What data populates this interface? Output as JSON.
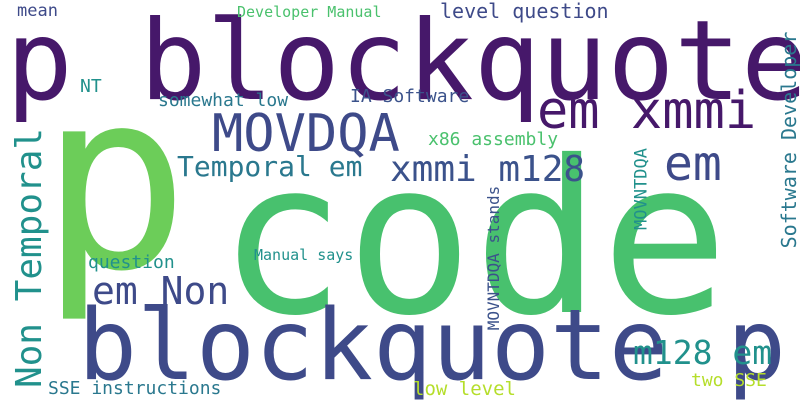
{
  "words": {
    "code": "code",
    "p": "p",
    "p_blockquote": "p blockquote",
    "blockquote_p": "blockquote p",
    "em_xmmi": "em xmmi",
    "movdqa": "MOVDQA",
    "em": "em",
    "non_temporal": "Non Temporal",
    "xmmi_m128": "xmmi m128",
    "em_non": "em Non",
    "temporal_em": "Temporal em",
    "m128_em": "m128 em",
    "software_developer": "Software Developer",
    "developer_manual": "Developer Manual",
    "level_question": "level question",
    "mean": "mean",
    "nt": "NT",
    "somewhat_low": "somewhat low",
    "ia_software": "IA Software",
    "x86_assembly": "x86 assembly",
    "movntdqa": "MOVNTDQA",
    "movntdqa_stands": "MOVNTDQA stands",
    "manual_says": "Manual says",
    "question": "question",
    "sse_instructions": "SSE instructions",
    "low_level": "low level",
    "two_sse": "two SSE"
  },
  "palette": {
    "dark_purple": "#46186a",
    "indigo": "#3e4a89",
    "slate_blue": "#3b528b",
    "teal": "#2a788e",
    "sea": "#21918c",
    "green": "#4ac16d",
    "lime_green": "#6ccd59",
    "yellow_green": "#b5de2b"
  }
}
